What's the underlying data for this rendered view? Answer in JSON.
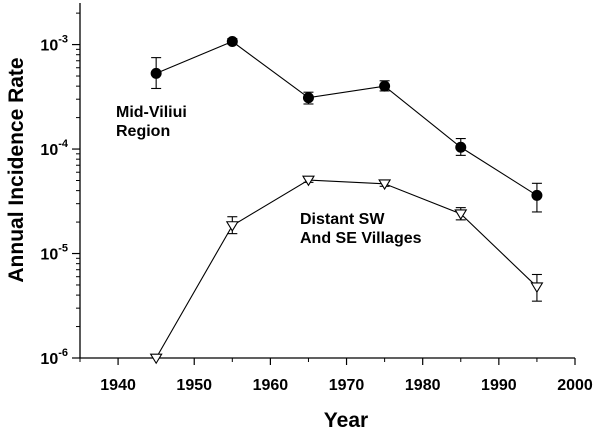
{
  "chart_data": {
    "type": "line",
    "xlabel": "Year",
    "ylabel": "Annual Incidence Rate",
    "x_ticks": [
      "1940",
      "1950",
      "1960",
      "1970",
      "1980",
      "1990",
      "2000"
    ],
    "y_ticks": [
      {
        "base": "10",
        "exp": "-6"
      },
      {
        "base": "10",
        "exp": "-5"
      },
      {
        "base": "10",
        "exp": "-4"
      },
      {
        "base": "10",
        "exp": "-3"
      }
    ],
    "xlim": [
      1935,
      2000
    ],
    "ylim": [
      1e-06,
      0.0025
    ],
    "y_scale": "log",
    "grid": false,
    "series": [
      {
        "name": "Mid-Viliui Region",
        "marker": "filled-circle",
        "color": "#000000",
        "x": [
          1945,
          1955,
          1965,
          1975,
          1985,
          1995
        ],
        "y": [
          0.00053,
          0.00107,
          0.00031,
          0.0004,
          0.000104,
          3.6e-05
        ],
        "err_low": [
          0.00038,
          0.00101,
          0.00027,
          0.00036,
          8.7e-05,
          2.5e-05
        ],
        "err_high": [
          0.00075,
          0.00114,
          0.00035,
          0.00045,
          0.000126,
          4.7e-05
        ]
      },
      {
        "name": "Distant SW And SE Villages",
        "marker": "open-triangle-down",
        "color": "#000000",
        "x": [
          1945,
          1955,
          1965,
          1975,
          1985,
          1995
        ],
        "y": [
          1e-06,
          1.85e-05,
          5.05e-05,
          4.65e-05,
          2.4e-05,
          4.8e-06
        ],
        "err_low": [
          null,
          1.55e-05,
          4.8e-05,
          4.4e-05,
          2.1e-05,
          3.5e-06
        ],
        "err_high": [
          null,
          2.25e-05,
          5.3e-05,
          4.9e-05,
          2.75e-05,
          6.3e-06
        ]
      }
    ],
    "annotations": [
      {
        "series": 0,
        "lines": [
          "Mid-Viliui",
          "Region"
        ]
      },
      {
        "series": 1,
        "lines": [
          "Distant SW",
          "And SE Villages"
        ]
      }
    ]
  }
}
